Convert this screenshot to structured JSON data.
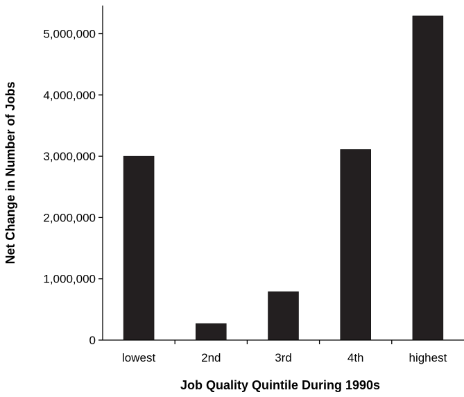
{
  "chart_data": {
    "type": "bar",
    "title": "",
    "xlabel": "Job Quality Quintile During 1990s",
    "ylabel": "Net Change in Number of Jobs",
    "categories": [
      "lowest",
      "2nd",
      "3rd",
      "4th",
      "highest"
    ],
    "values": [
      3000000,
      270000,
      790000,
      3110000,
      5290000
    ],
    "ylim": [
      0,
      5500000
    ],
    "yticks": [
      0,
      1000000,
      2000000,
      3000000,
      4000000,
      5000000
    ],
    "ytick_labels": [
      "0",
      "1,000,000",
      "2,000,000",
      "3,000,000",
      "4,000,000",
      "5,000,000"
    ],
    "grid": false,
    "legend": "none",
    "bar_color": "#231f20"
  }
}
